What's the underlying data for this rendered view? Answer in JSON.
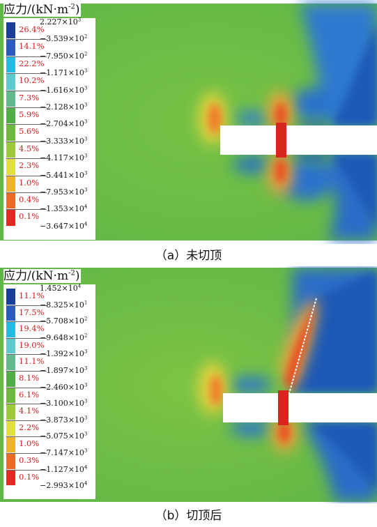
{
  "panels": [
    {
      "legend_title": "应力/(kN·m",
      "legend_title_exp": "-2",
      "legend_title_close": ")",
      "percentages": [
        "26.4%",
        "14.1%",
        "22.2%",
        "10.2%",
        "7.3%",
        "5.9%",
        "5.6%",
        "4.5%",
        "2.3%",
        "1.0%",
        "0.4%",
        "0.1%"
      ],
      "values": [
        {
          "mant": "2.227×10",
          "exp": "3"
        },
        {
          "mant": "−3.539×10",
          "exp": "2"
        },
        {
          "mant": "−7.950×10",
          "exp": "2"
        },
        {
          "mant": "−1.171×10",
          "exp": "3"
        },
        {
          "mant": "−1.616×10",
          "exp": "3"
        },
        {
          "mant": "−2.128×10",
          "exp": "3"
        },
        {
          "mant": "−2.704×10",
          "exp": "3"
        },
        {
          "mant": "−3.333×10",
          "exp": "3"
        },
        {
          "mant": "−4.117×10",
          "exp": "3"
        },
        {
          "mant": "−5.441×10",
          "exp": "3"
        },
        {
          "mant": "−7.953×10",
          "exp": "3"
        },
        {
          "mant": "−1.353×10",
          "exp": "4"
        },
        {
          "mant": "−3.647×10",
          "exp": "4"
        }
      ],
      "caption": "（a）未切顶"
    },
    {
      "legend_title": "应力/(kN·m",
      "legend_title_exp": "-2",
      "legend_title_close": ")",
      "percentages": [
        "11.1%",
        "17.5%",
        "19.4%",
        "19.0%",
        "11.1%",
        "8.1%",
        "6.1%",
        "4.1%",
        "2.2%",
        "1.0%",
        "0.3%",
        "0.1%"
      ],
      "values": [
        {
          "mant": "1.452×10",
          "exp": "4"
        },
        {
          "mant": "−8.325×10",
          "exp": "1"
        },
        {
          "mant": "−5.708×10",
          "exp": "2"
        },
        {
          "mant": "−9.648×10",
          "exp": "2"
        },
        {
          "mant": "−1.392×10",
          "exp": "3"
        },
        {
          "mant": "−1.897×10",
          "exp": "3"
        },
        {
          "mant": "−2.460×10",
          "exp": "3"
        },
        {
          "mant": "−3.100×10",
          "exp": "3"
        },
        {
          "mant": "−3.873×10",
          "exp": "3"
        },
        {
          "mant": "−5.075×10",
          "exp": "3"
        },
        {
          "mant": "−7.147×10",
          "exp": "3"
        },
        {
          "mant": "−1.127×10",
          "exp": "4"
        },
        {
          "mant": "−2.993×10",
          "exp": "4"
        }
      ],
      "caption": "（b）切顶后"
    }
  ],
  "colors": {
    "legend_swatches": [
      "#1a3f9a",
      "#2a5cc0",
      "#28b8e6",
      "#5ec8cf",
      "#63b98e",
      "#4fae45",
      "#6db83e",
      "#9cc93d",
      "#e2df45",
      "#f0b32e",
      "#ea6a27",
      "#e02b22"
    ],
    "percentage_text": "#d21f1f",
    "field_green": "#6cbd45",
    "field_blue": "#1f58b6",
    "field_red": "#e0301f",
    "field_yellow": "#e8d43c"
  }
}
